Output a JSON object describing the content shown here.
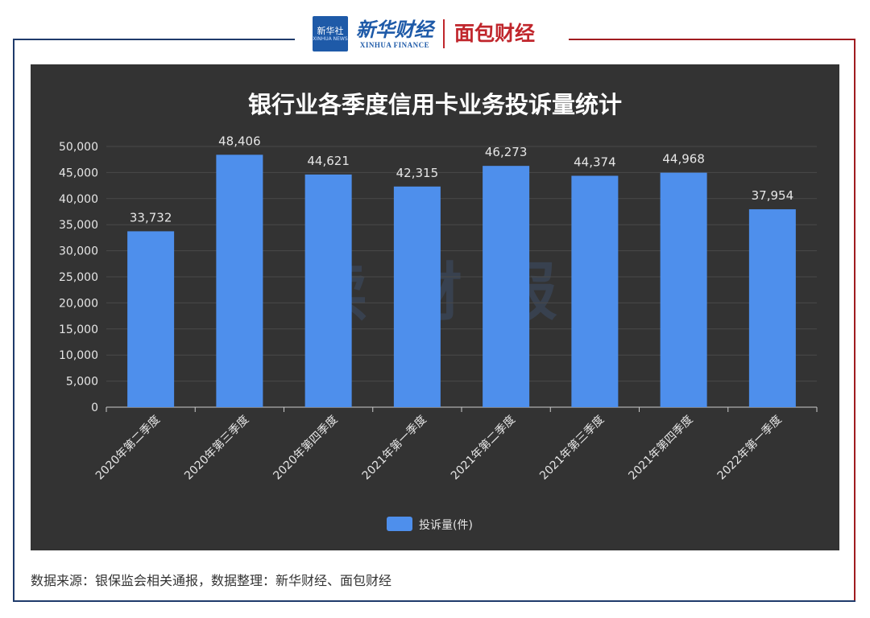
{
  "header": {
    "badge_text": "新华社",
    "badge_sub": "XINHUA NEWS",
    "brand_xinhua_cn": "新华财经",
    "brand_xinhua_en": "XINHUA FINANCE",
    "brand_mianbao": "面包财经"
  },
  "watermark": "读财报",
  "chart_data": {
    "type": "bar",
    "title": "银行业各季度信用卡业务投诉量统计",
    "categories": [
      "2020年第二季度",
      "2020年第三季度",
      "2020年第四季度",
      "2021年第一季度",
      "2021年第二季度",
      "2021年第三季度",
      "2021年第四季度",
      "2022年第一季度"
    ],
    "series": [
      {
        "name": "投诉量(件)",
        "values": [
          33732,
          48406,
          44621,
          42315,
          46273,
          44374,
          44968,
          37954
        ]
      }
    ],
    "data_labels": [
      "33,732",
      "48,406",
      "44,621",
      "42,315",
      "46,273",
      "44,374",
      "44,968",
      "37,954"
    ],
    "y_ticks": [
      "0",
      "5,000",
      "10,000",
      "15,000",
      "20,000",
      "25,000",
      "30,000",
      "35,000",
      "40,000",
      "45,000",
      "50,000"
    ],
    "ylim": [
      0,
      50000
    ],
    "grid": true,
    "legend_position": "bottom-center",
    "bar_color": "#4e8fec",
    "background_color": "#333333"
  },
  "footer": {
    "source": "数据来源：银保监会相关通报，数据整理：新华财经、面包财经"
  }
}
